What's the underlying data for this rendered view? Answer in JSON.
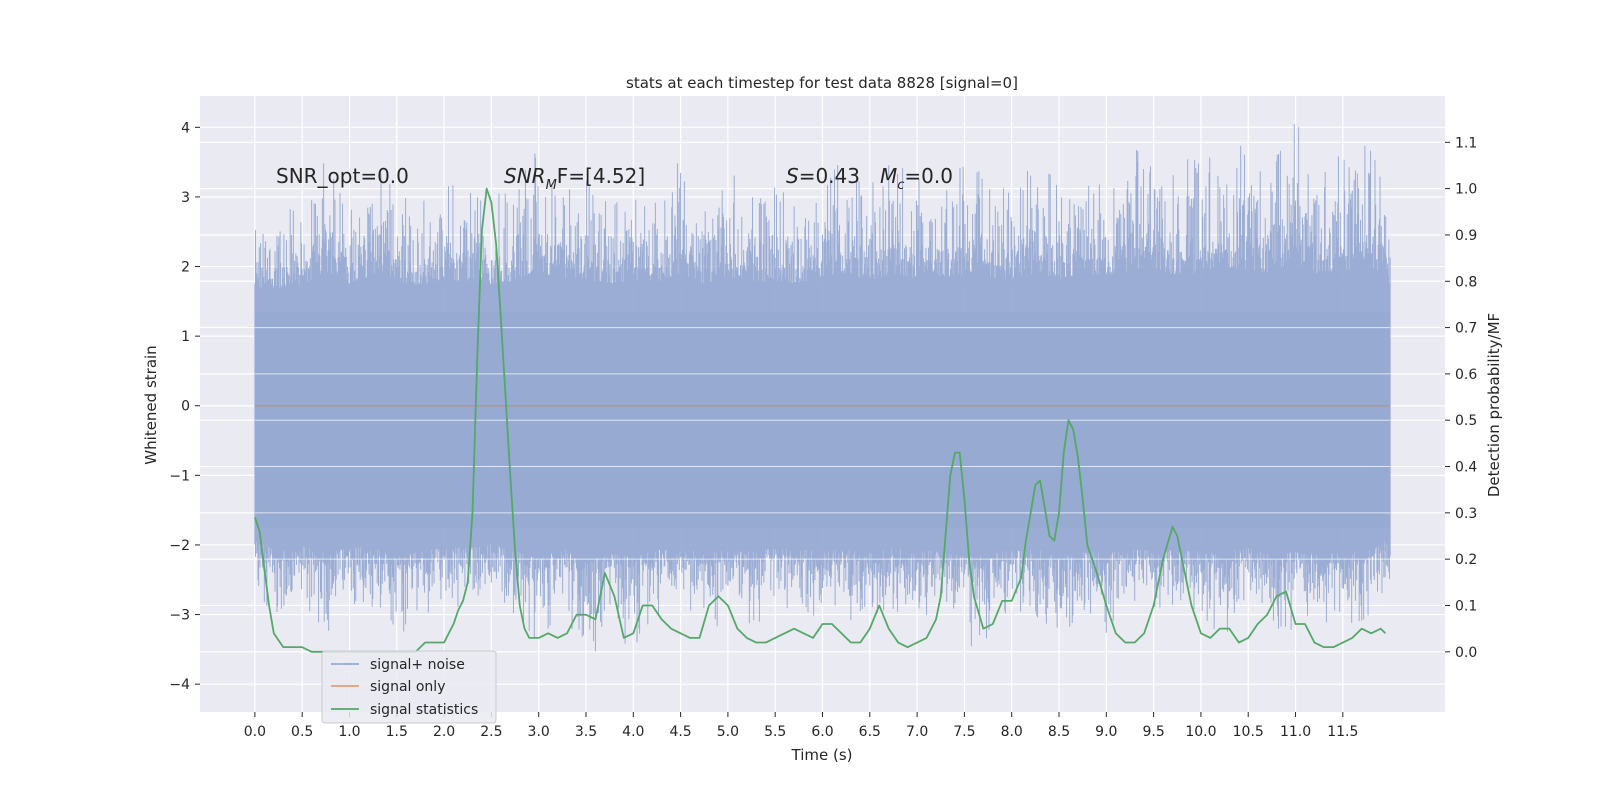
{
  "chart_data": {
    "type": "line",
    "title": "stats at each timestep for test data 8828 [signal=0]",
    "xlabel": "Time (s)",
    "ylabel": "Whitened strain",
    "y2label": "Detection probability/MF",
    "xlim": [
      -0.58,
      12.58
    ],
    "ylim": [
      -4.4,
      4.45
    ],
    "y2lim": [
      -0.13,
      1.2
    ],
    "x_ticks": [
      "0.0",
      "0.5",
      "1.0",
      "1.5",
      "2.0",
      "2.5",
      "3.0",
      "3.5",
      "4.0",
      "4.5",
      "5.0",
      "5.5",
      "6.0",
      "6.5",
      "7.0",
      "7.5",
      "8.0",
      "8.5",
      "9.0",
      "9.5",
      "10.0",
      "10.5",
      "11.0",
      "11.5"
    ],
    "y_ticks": [
      "−4",
      "−3",
      "−2",
      "−1",
      "0",
      "1",
      "2",
      "3",
      "4"
    ],
    "y2_ticks": [
      "0.0",
      "0.1",
      "0.2",
      "0.3",
      "0.4",
      "0.5",
      "0.6",
      "0.7",
      "0.8",
      "0.9",
      "1.0",
      "1.1"
    ],
    "grid": true,
    "legend_position": "lower-left",
    "annotations": {
      "snr_opt": "SNR_opt=0.0",
      "snr_mf_main": "SNR",
      "snr_mf_sub": "M",
      "snr_mf_rest": "F=[4.52]",
      "s_main": "S",
      "s_rest": "=0.43",
      "mc_main": "M",
      "mc_sub": "c",
      "mc_rest": "=0.0"
    },
    "series": [
      {
        "name": "signal+ noise",
        "color": "#97aad2",
        "axis": "left",
        "style": "dense-noise",
        "x_range": [
          0.0,
          12.0
        ],
        "envelope": {
          "x": [
            0.0,
            0.25,
            0.5,
            0.75,
            1.0,
            1.25,
            1.5,
            1.75,
            2.0,
            2.25,
            2.5,
            2.75,
            3.0,
            3.25,
            3.5,
            3.75,
            4.0,
            4.25,
            4.5,
            4.75,
            5.0,
            5.25,
            5.5,
            5.75,
            6.0,
            6.25,
            6.5,
            6.75,
            7.0,
            7.25,
            7.5,
            7.75,
            8.0,
            8.25,
            8.5,
            8.75,
            9.0,
            9.25,
            9.5,
            9.75,
            10.0,
            10.25,
            10.5,
            10.75,
            11.0,
            11.25,
            11.5,
            11.75,
            12.0
          ],
          "upper": [
            2.7,
            2.8,
            2.9,
            3.7,
            3.0,
            3.5,
            3.2,
            2.9,
            3.3,
            3.1,
            3.0,
            3.2,
            3.8,
            3.1,
            3.3,
            3.0,
            3.2,
            3.1,
            3.6,
            3.0,
            3.4,
            3.1,
            3.2,
            3.0,
            3.3,
            3.6,
            3.2,
            3.6,
            3.3,
            3.4,
            3.5,
            3.4,
            3.2,
            3.6,
            3.3,
            3.6,
            3.5,
            3.7,
            3.8,
            3.5,
            3.6,
            3.9,
            3.7,
            3.6,
            4.1,
            3.5,
            3.7,
            3.9,
            3.0
          ],
          "lower": [
            -2.6,
            -3.2,
            -2.9,
            -3.3,
            -3.0,
            -2.9,
            -3.4,
            -3.1,
            -3.0,
            -3.0,
            -2.8,
            -3.2,
            -3.6,
            -3.0,
            -3.8,
            -3.3,
            -3.5,
            -3.1,
            -3.0,
            -3.3,
            -3.1,
            -3.2,
            -3.0,
            -3.0,
            -3.2,
            -3.1,
            -3.3,
            -3.0,
            -3.1,
            -3.2,
            -3.5,
            -3.4,
            -3.1,
            -3.0,
            -3.6,
            -3.2,
            -3.3,
            -3.0,
            -3.2,
            -3.1,
            -3.2,
            -3.3,
            -3.0,
            -3.4,
            -3.2,
            -3.3,
            -3.3,
            -3.1,
            -2.6
          ]
        }
      },
      {
        "name": "signal only",
        "color": "#dd8452",
        "axis": "left",
        "x": [
          0.0,
          12.0
        ],
        "y": [
          0.0,
          0.0
        ]
      },
      {
        "name": "signal statistics",
        "color": "#55a868",
        "axis": "right",
        "x": [
          0.0,
          0.05,
          0.1,
          0.15,
          0.2,
          0.3,
          0.4,
          0.5,
          0.6,
          0.7,
          0.8,
          0.9,
          1.0,
          1.1,
          1.2,
          1.3,
          1.4,
          1.5,
          1.6,
          1.7,
          1.8,
          1.9,
          2.0,
          2.1,
          2.15,
          2.2,
          2.25,
          2.3,
          2.35,
          2.4,
          2.45,
          2.5,
          2.55,
          2.6,
          2.65,
          2.7,
          2.75,
          2.8,
          2.85,
          2.9,
          2.95,
          3.0,
          3.1,
          3.2,
          3.3,
          3.4,
          3.5,
          3.6,
          3.7,
          3.8,
          3.9,
          4.0,
          4.1,
          4.2,
          4.3,
          4.4,
          4.5,
          4.6,
          4.7,
          4.8,
          4.9,
          5.0,
          5.1,
          5.2,
          5.3,
          5.4,
          5.5,
          5.6,
          5.7,
          5.8,
          5.9,
          6.0,
          6.1,
          6.2,
          6.3,
          6.4,
          6.5,
          6.6,
          6.7,
          6.8,
          6.9,
          7.0,
          7.1,
          7.2,
          7.25,
          7.3,
          7.35,
          7.4,
          7.45,
          7.5,
          7.55,
          7.6,
          7.7,
          7.8,
          7.9,
          8.0,
          8.1,
          8.15,
          8.2,
          8.25,
          8.3,
          8.35,
          8.4,
          8.45,
          8.5,
          8.55,
          8.6,
          8.65,
          8.7,
          8.75,
          8.8,
          8.85,
          8.9,
          9.0,
          9.1,
          9.2,
          9.3,
          9.4,
          9.5,
          9.6,
          9.7,
          9.75,
          9.8,
          9.9,
          10.0,
          10.1,
          10.2,
          10.3,
          10.4,
          10.5,
          10.6,
          10.7,
          10.8,
          10.9,
          11.0,
          11.1,
          11.2,
          11.3,
          11.4,
          11.5,
          11.6,
          11.7,
          11.8,
          11.9,
          11.95
        ],
        "y": [
          0.29,
          0.26,
          0.18,
          0.1,
          0.04,
          0.01,
          0.01,
          0.01,
          0.0,
          0.0,
          0.0,
          0.0,
          0.0,
          0.0,
          0.0,
          0.0,
          0.0,
          0.0,
          0.0,
          0.0,
          0.02,
          0.02,
          0.02,
          0.06,
          0.09,
          0.11,
          0.15,
          0.3,
          0.63,
          0.91,
          1.0,
          0.97,
          0.88,
          0.72,
          0.55,
          0.38,
          0.22,
          0.1,
          0.05,
          0.03,
          0.03,
          0.03,
          0.04,
          0.03,
          0.04,
          0.08,
          0.08,
          0.07,
          0.17,
          0.12,
          0.03,
          0.04,
          0.1,
          0.1,
          0.07,
          0.05,
          0.04,
          0.03,
          0.03,
          0.1,
          0.12,
          0.1,
          0.05,
          0.03,
          0.02,
          0.02,
          0.03,
          0.04,
          0.05,
          0.04,
          0.03,
          0.06,
          0.06,
          0.04,
          0.02,
          0.02,
          0.05,
          0.1,
          0.05,
          0.02,
          0.01,
          0.02,
          0.03,
          0.07,
          0.12,
          0.25,
          0.38,
          0.43,
          0.43,
          0.33,
          0.2,
          0.12,
          0.05,
          0.06,
          0.11,
          0.11,
          0.16,
          0.24,
          0.3,
          0.36,
          0.37,
          0.31,
          0.25,
          0.24,
          0.3,
          0.43,
          0.5,
          0.48,
          0.42,
          0.33,
          0.23,
          0.2,
          0.17,
          0.1,
          0.04,
          0.02,
          0.02,
          0.04,
          0.1,
          0.2,
          0.27,
          0.25,
          0.2,
          0.1,
          0.04,
          0.03,
          0.05,
          0.05,
          0.02,
          0.03,
          0.06,
          0.08,
          0.12,
          0.13,
          0.06,
          0.06,
          0.02,
          0.01,
          0.01,
          0.02,
          0.03,
          0.05,
          0.04,
          0.05,
          0.04
        ]
      }
    ]
  }
}
